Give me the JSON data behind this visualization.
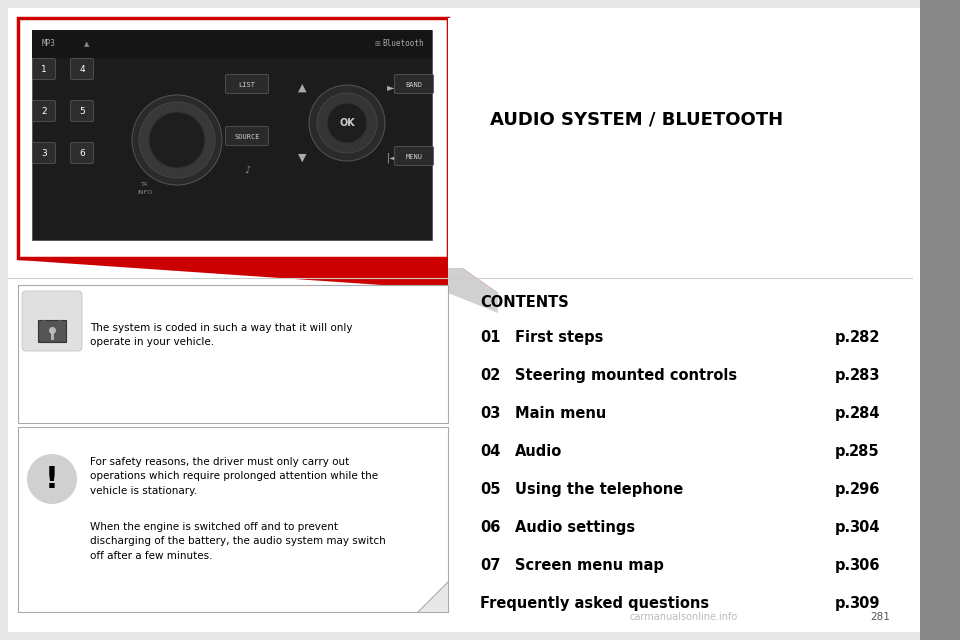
{
  "bg_color": "#e8e8e8",
  "page_bg": "#ffffff",
  "title": "AUDIO SYSTEM / BLUETOOTH",
  "title_fontsize": 13,
  "contents_label": "CONTENTS",
  "contents_fontsize": 10.5,
  "toc_items": [
    {
      "num": "01",
      "text": "First steps",
      "page": "282"
    },
    {
      "num": "02",
      "text": "Steering mounted controls",
      "page": "283"
    },
    {
      "num": "03",
      "text": "Main menu",
      "page": "284"
    },
    {
      "num": "04",
      "text": "Audio",
      "page": "285"
    },
    {
      "num": "05",
      "text": "Using the telephone",
      "page": "296"
    },
    {
      "num": "06",
      "text": "Audio settings",
      "page": "304"
    },
    {
      "num": "07",
      "text": "Screen menu map",
      "page": "306"
    },
    {
      "num": "",
      "text": "Frequently asked questions",
      "page": "309"
    }
  ],
  "lock_text": "The system is coded in such a way that it will only\noperate in your vehicle.",
  "warning_text1": "For safety reasons, the driver must only carry out\noperations which require prolonged attention while the\nvehicle is stationary.",
  "warning_text2": "When the engine is switched off and to prevent\ndischarging of the battery, the audio system may switch\noff after a few minutes.",
  "red_color": "#cc0000",
  "gray_border": "#aaaaaa",
  "sidebar_color": "#888888",
  "watermark": "carmanualsonline.info",
  "page_num": "281"
}
